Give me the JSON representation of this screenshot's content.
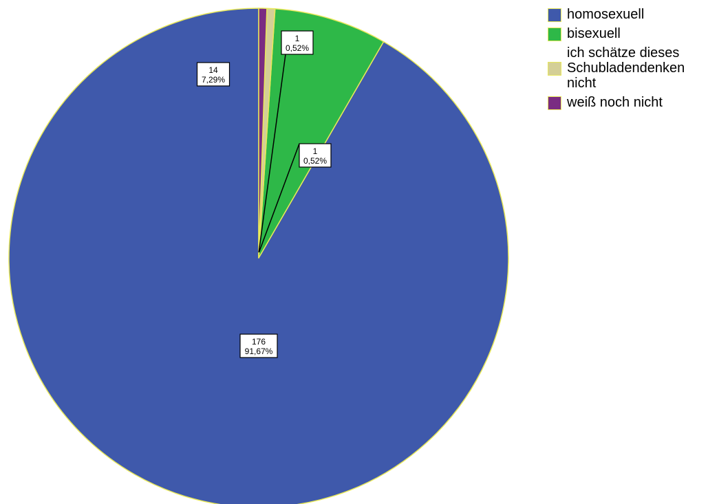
{
  "chart_data": {
    "type": "pie",
    "title": "",
    "slices": [
      {
        "label": "homosexuell",
        "count": "176",
        "percent": "91,67%",
        "value": 176,
        "color": "#3f59ab"
      },
      {
        "label": "bisexuell",
        "count": "14",
        "percent": "7,29%",
        "value": 14,
        "color": "#2eb848"
      },
      {
        "label": "ich schätze dieses Schubladendenken nicht",
        "count": "1",
        "percent": "0,52%",
        "value": 1,
        "color": "#d4cf97"
      },
      {
        "label": "weiß noch nicht",
        "count": "1",
        "percent": "0,52%",
        "value": 1,
        "color": "#7a2c82"
      }
    ],
    "slice_border_color": "#e8e85a",
    "legend_position": "top-right"
  }
}
